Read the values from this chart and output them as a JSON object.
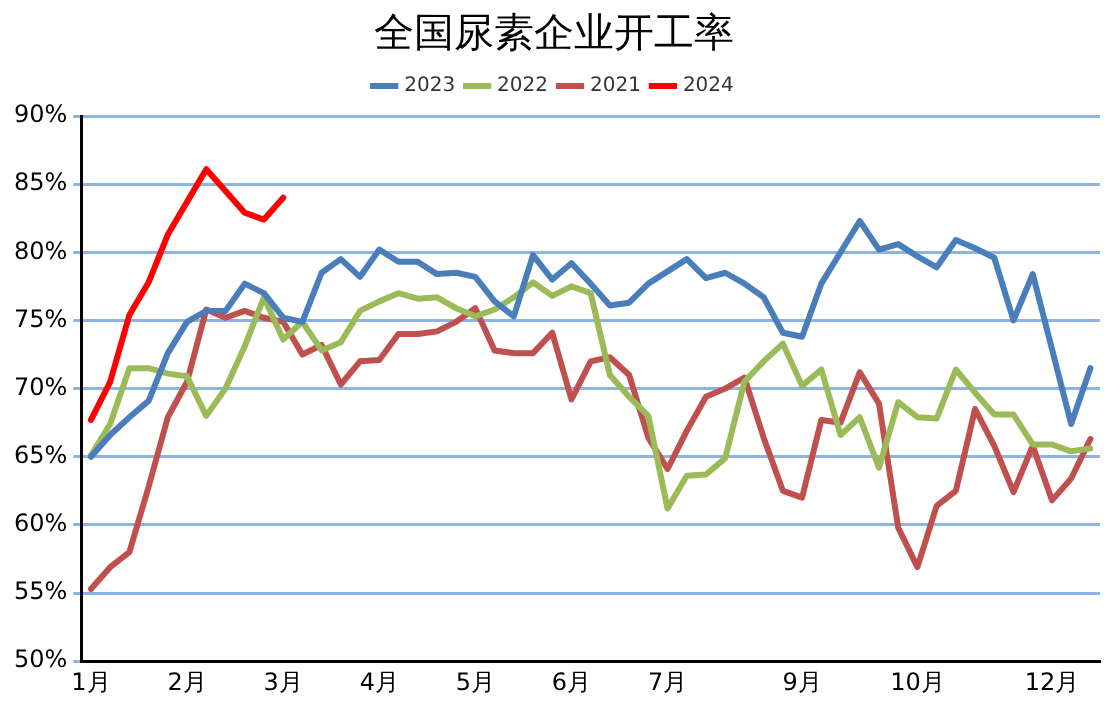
{
  "chart_data": {
    "type": "line",
    "title": "全国尿素企业开工率",
    "categories": [
      "1月",
      null,
      null,
      null,
      null,
      "2月",
      null,
      null,
      null,
      null,
      "3月",
      null,
      null,
      null,
      null,
      "4月",
      null,
      null,
      null,
      null,
      "5月",
      null,
      null,
      null,
      null,
      "6月",
      null,
      null,
      null,
      null,
      "7月",
      null,
      null,
      null,
      null,
      null,
      null,
      "9月",
      null,
      null,
      null,
      null,
      null,
      "10月",
      null,
      null,
      null,
      null,
      null,
      null,
      "12月",
      null,
      null
    ],
    "series": [
      {
        "name": "2023",
        "color": "#4a7ebb",
        "values": [
          65.0,
          66.6,
          67.9,
          69.1,
          72.6,
          74.9,
          75.7,
          75.7,
          77.7,
          77.0,
          75.2,
          74.9,
          78.5,
          79.5,
          78.2,
          80.2,
          79.3,
          79.3,
          78.4,
          78.5,
          78.2,
          76.4,
          75.3,
          79.8,
          78.0,
          79.2,
          77.7,
          76.1,
          76.3,
          77.7,
          78.6,
          79.5,
          78.1,
          78.5,
          77.7,
          76.7,
          74.1,
          73.8,
          77.7,
          80.0,
          82.3,
          80.2,
          80.6,
          79.7,
          78.9,
          80.9,
          80.3,
          79.6,
          75.0,
          78.4,
          72.9,
          67.4,
          71.5
        ]
      },
      {
        "name": "2022",
        "color": "#9bbb59",
        "values": [
          65.1,
          67.4,
          71.5,
          71.5,
          71.1,
          70.9,
          68.0,
          70.0,
          73.1,
          76.7,
          73.6,
          74.9,
          72.8,
          73.4,
          75.7,
          76.4,
          77.0,
          76.6,
          76.7,
          75.9,
          75.3,
          75.8,
          76.7,
          77.8,
          76.8,
          77.5,
          77.0,
          71.0,
          69.4,
          68.0,
          61.2,
          63.6,
          63.7,
          64.9,
          70.5,
          72.0,
          73.3,
          70.2,
          71.4,
          66.6,
          67.9,
          64.2,
          69.0,
          67.9,
          67.8,
          71.4,
          69.7,
          68.1,
          68.1,
          65.9,
          65.9,
          65.4,
          65.6
        ]
      },
      {
        "name": "2021",
        "color": "#c0504d",
        "values": [
          55.3,
          56.9,
          58.0,
          62.8,
          67.9,
          70.5,
          75.8,
          75.2,
          75.7,
          75.2,
          74.9,
          72.5,
          73.2,
          70.3,
          72.0,
          72.1,
          74.0,
          74.0,
          74.2,
          74.9,
          75.9,
          72.8,
          72.6,
          72.6,
          74.1,
          69.2,
          72.0,
          72.3,
          71.0,
          66.4,
          64.1,
          66.9,
          69.4,
          70.0,
          70.8,
          66.4,
          62.5,
          62.0,
          67.7,
          67.5,
          71.2,
          68.9,
          59.8,
          56.9,
          61.4,
          62.5,
          68.5,
          65.8,
          62.4,
          65.8,
          61.8,
          63.4,
          66.3
        ]
      },
      {
        "name": "2024",
        "color": "#ff0000",
        "values": [
          67.7,
          70.5,
          75.4,
          77.8,
          81.3,
          83.7,
          86.1,
          84.5,
          82.9,
          82.4,
          84.0,
          null,
          null,
          null,
          null,
          null,
          null,
          null,
          null,
          null,
          null,
          null,
          null,
          null,
          null,
          null,
          null,
          null,
          null,
          null,
          null,
          null,
          null,
          null,
          null,
          null,
          null,
          null,
          null,
          null,
          null,
          null,
          null,
          null,
          null,
          null,
          null,
          null,
          null,
          null,
          null,
          null,
          null
        ]
      }
    ],
    "ylim": [
      50,
      90
    ],
    "yticks": [
      {
        "value": 50,
        "label": "50%"
      },
      {
        "value": 55,
        "label": "55%"
      },
      {
        "value": 60,
        "label": "60%"
      },
      {
        "value": 65,
        "label": "65%"
      },
      {
        "value": 70,
        "label": "70%"
      },
      {
        "value": 75,
        "label": "75%"
      },
      {
        "value": 80,
        "label": "80%"
      },
      {
        "value": 85,
        "label": "85%"
      },
      {
        "value": 90,
        "label": "90%"
      }
    ],
    "grid": "y",
    "legend": "top",
    "marker": "none",
    "line_style": "solid"
  }
}
